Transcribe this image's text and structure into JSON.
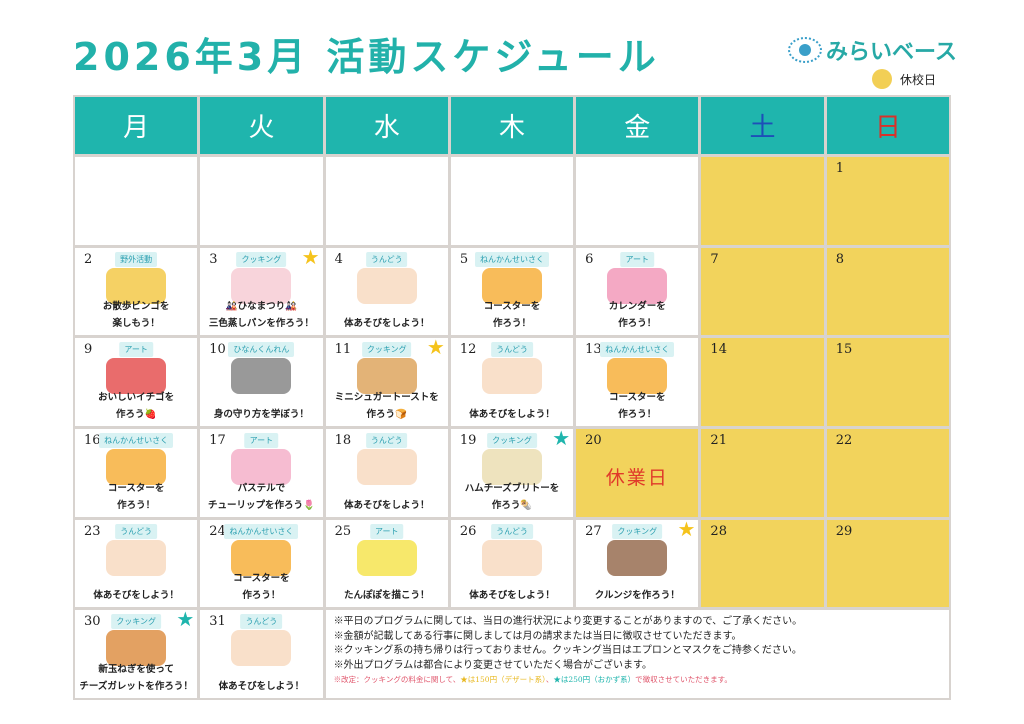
{
  "title": "2026年3月 活動スケジュール",
  "logo": "みらいベース",
  "legend": {
    "label": "休校日",
    "color": "#f2cf55"
  },
  "colors": {
    "teal": "#1fb5ad",
    "yellow": "#f2d35c",
    "star_gold": "#f5c31c",
    "star_teal": "#1fb5ad",
    "holiday_red": "#e03a2a"
  },
  "weekdays": [
    "月",
    "火",
    "水",
    "木",
    "金",
    "土",
    "日"
  ],
  "weeks": [
    [
      {
        "day": ""
      },
      {
        "day": ""
      },
      {
        "day": ""
      },
      {
        "day": ""
      },
      {
        "day": ""
      },
      {
        "day": "",
        "closed": true
      },
      {
        "day": "1",
        "closed": true
      }
    ],
    [
      {
        "day": "2",
        "tag": "野外活動",
        "icon": "bingo-family-icon",
        "text": [
          "お散歩ビンゴを",
          "楽しもう！"
        ]
      },
      {
        "day": "3",
        "tag": "クッキング",
        "star": "gold",
        "icon": "steamed-bun-hina-doll-icon",
        "text": [
          "🎎ひなまつり🎎",
          "三色蒸しパンを作ろう！"
        ]
      },
      {
        "day": "4",
        "tag": "うんどう",
        "icon": "kids-stretching-icon",
        "text": [
          "体あそびをしよう！"
        ]
      },
      {
        "day": "5",
        "tag": "ねんかんせいさく",
        "icon": "coaster-icon",
        "text": [
          "コースターを",
          "作ろう！"
        ]
      },
      {
        "day": "6",
        "tag": "アート",
        "icon": "calendar-pencils-icon",
        "text": [
          "カレンダーを",
          "作ろう！"
        ]
      },
      {
        "day": "7",
        "closed": true
      },
      {
        "day": "8",
        "closed": true
      }
    ],
    [
      {
        "day": "9",
        "tag": "アート",
        "icon": "strawberry-icon",
        "text": [
          "おいしいイチゴを",
          "作ろう🍓"
        ]
      },
      {
        "day": "10",
        "tag": "ひなんくんれん",
        "icon": "evacuation-drill-icon",
        "text": [
          "身の守り方を学ぼう！"
        ]
      },
      {
        "day": "11",
        "tag": "クッキング",
        "star": "gold",
        "icon": "toast-icon",
        "text": [
          "ミニシュガートーストを",
          "作ろう🍞"
        ]
      },
      {
        "day": "12",
        "tag": "うんどう",
        "icon": "kids-stretching-icon",
        "text": [
          "体あそびをしよう！"
        ]
      },
      {
        "day": "13",
        "tag": "ねんかんせいさく",
        "icon": "coaster-icon",
        "text": [
          "コースターを",
          "作ろう！"
        ]
      },
      {
        "day": "14",
        "closed": true
      },
      {
        "day": "15",
        "closed": true
      }
    ],
    [
      {
        "day": "16",
        "tag": "ねんかんせいさく",
        "icon": "coaster-icon",
        "text": [
          "コースターを",
          "作ろう！"
        ]
      },
      {
        "day": "17",
        "tag": "アート",
        "icon": "tulip-icon",
        "text": [
          "パステルで",
          "チューリップを作ろう🌷"
        ]
      },
      {
        "day": "18",
        "tag": "うんどう",
        "icon": "kids-stretching-icon",
        "text": [
          "体あそびをしよう！"
        ]
      },
      {
        "day": "19",
        "tag": "クッキング",
        "star": "teal",
        "icon": "sandwich-icon",
        "text": [
          "ハムチーズブリトーを",
          "作ろう🌯"
        ]
      },
      {
        "day": "20",
        "closed": true,
        "holiday": "休業日"
      },
      {
        "day": "21",
        "closed": true
      },
      {
        "day": "22",
        "closed": true
      }
    ],
    [
      {
        "day": "23",
        "tag": "うんどう",
        "icon": "kids-stretching-icon",
        "text": [
          "体あそびをしよう！"
        ]
      },
      {
        "day": "24",
        "tag": "ねんかんせいさく",
        "icon": "coaster-icon",
        "text": [
          "コースターを",
          "作ろう！"
        ]
      },
      {
        "day": "25",
        "tag": "アート",
        "icon": "dandelion-icon",
        "text": [
          "たんぽぽを描こう！"
        ]
      },
      {
        "day": "26",
        "tag": "うんどう",
        "icon": "kids-stretching-icon",
        "text": [
          "体あそびをしよう！"
        ]
      },
      {
        "day": "27",
        "tag": "クッキング",
        "star": "gold",
        "icon": "cruffin-photo-icon",
        "text": [
          "クルンジを作ろう！"
        ]
      },
      {
        "day": "28",
        "closed": true
      },
      {
        "day": "29",
        "closed": true
      }
    ],
    [
      {
        "day": "30",
        "tag": "クッキング",
        "star": "teal",
        "icon": "onion-galette-icon",
        "text": [
          "新玉ねぎを使って",
          "チーズガレットを作ろう！"
        ]
      },
      {
        "day": "31",
        "tag": "うんどう",
        "icon": "kids-stretching-icon",
        "text": [
          "体あそびをしよう！"
        ]
      }
    ]
  ],
  "notes": [
    "※平日のプログラムに関しては、当日の進行状況により変更することがありますので、ご了承ください。",
    "※金額が記載してある行事に関しましては月の請求または当日に徴収させていただきます。",
    "※クッキング系の持ち帰りは行っておりません。クッキング当日はエプロンとマスクをご持参ください。",
    "※外出プログラムは都合により変更させていただく場合がございます。"
  ],
  "revision": [
    {
      "text": "※改定：クッキングの料金に関して、",
      "color": "#e0556b"
    },
    {
      "text": "★は150円（デザート系）",
      "color": "#e8b820"
    },
    {
      "text": "、",
      "color": "#e0556b"
    },
    {
      "text": "★は250円（おかず系）",
      "color": "#1fb5ad"
    },
    {
      "text": "で徴収させていただきます。",
      "color": "#e0556b"
    }
  ]
}
